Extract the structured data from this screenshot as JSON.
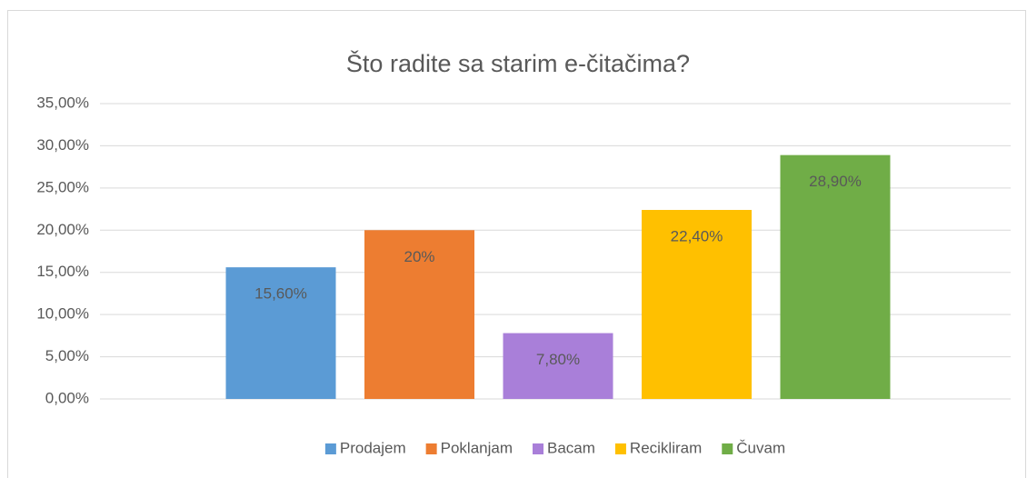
{
  "chart_data": {
    "type": "bar",
    "title": "Što radite sa starim e-čitačima?",
    "categories": [
      null
    ],
    "series": [
      {
        "name": "Prodajem",
        "color": "#5b9bd5",
        "values": [
          15.6
        ],
        "value_labels": [
          "15,60%"
        ]
      },
      {
        "name": "Poklanjam",
        "color": "#ed7d31",
        "values": [
          20
        ],
        "value_labels": [
          "20%"
        ]
      },
      {
        "name": "Bacam",
        "color": "#a97fd9",
        "values": [
          7.8
        ],
        "value_labels": [
          "7,80%"
        ]
      },
      {
        "name": "Recikliram",
        "color": "#ffc000",
        "values": [
          22.4
        ],
        "value_labels": [
          "22,40%"
        ]
      },
      {
        "name": "Čuvam",
        "color": "#70ad47",
        "values": [
          28.9
        ],
        "value_labels": [
          "28,90%"
        ]
      }
    ],
    "ylim": [
      0,
      35
    ],
    "yticks": [
      {
        "value": 0,
        "label": "0,00%"
      },
      {
        "value": 5,
        "label": "5,00%"
      },
      {
        "value": 10,
        "label": "10,00%"
      },
      {
        "value": 15,
        "label": "15,00%"
      },
      {
        "value": 20,
        "label": "20,00%"
      },
      {
        "value": 25,
        "label": "25,00%"
      },
      {
        "value": 30,
        "label": "30,00%"
      },
      {
        "value": 35,
        "label": "35,00%"
      }
    ],
    "grid": true,
    "legend": "bottom"
  }
}
